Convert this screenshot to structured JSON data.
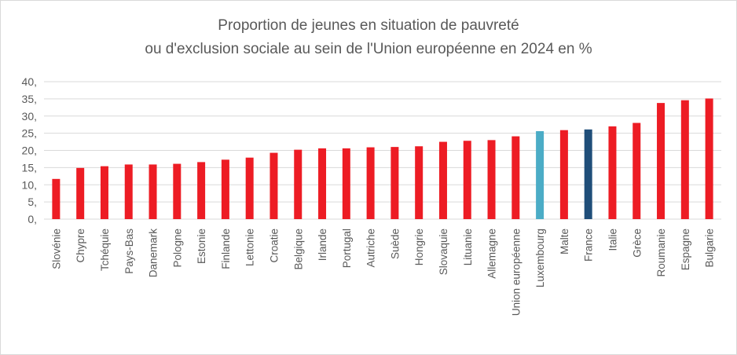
{
  "chart_data": {
    "type": "bar",
    "title": "Proportion de jeunes en situation de pauvreté",
    "subtitle": "ou d'exclusion sociale au sein de l'Union européenne en 2024 en %",
    "xlabel": "",
    "ylabel": "",
    "ylim": [
      0,
      40
    ],
    "yticks": [
      "0,",
      "5,",
      "10,",
      "15,",
      "20,",
      "25,",
      "30,",
      "35,",
      "40,"
    ],
    "grid": true,
    "legend": "none",
    "categories": [
      "Slovénie",
      "Chypre",
      "Tchéquie",
      "Pays-Bas",
      "Danemark",
      "Pologne",
      "Estonie",
      "Finlande",
      "Lettonie",
      "Croatie",
      "Belgique",
      "Irlande",
      "Portugal",
      "Autriche",
      "Suède",
      "Hongrie",
      "Slovaquie",
      "Lituanie",
      "Allemagne",
      "Union européenne",
      "Luxembourg",
      "Malte",
      "France",
      "Italie",
      "Grèce",
      "Roumanie",
      "Espagne",
      "Bulgarie"
    ],
    "values": [
      11.7,
      14.9,
      15.4,
      15.9,
      15.9,
      16.1,
      16.6,
      17.3,
      17.9,
      19.3,
      20.2,
      20.6,
      20.6,
      20.9,
      21.0,
      21.2,
      22.5,
      22.8,
      23.0,
      24.1,
      25.6,
      25.9,
      26.1,
      27.0,
      28.0,
      33.8,
      34.6,
      35.1
    ],
    "colors": {
      "default": "#ed1c24",
      "Luxembourg": "#4bacc6",
      "France": "#1f4e79"
    },
    "grid_color": "#d9d9d9",
    "text_color": "#595959"
  }
}
